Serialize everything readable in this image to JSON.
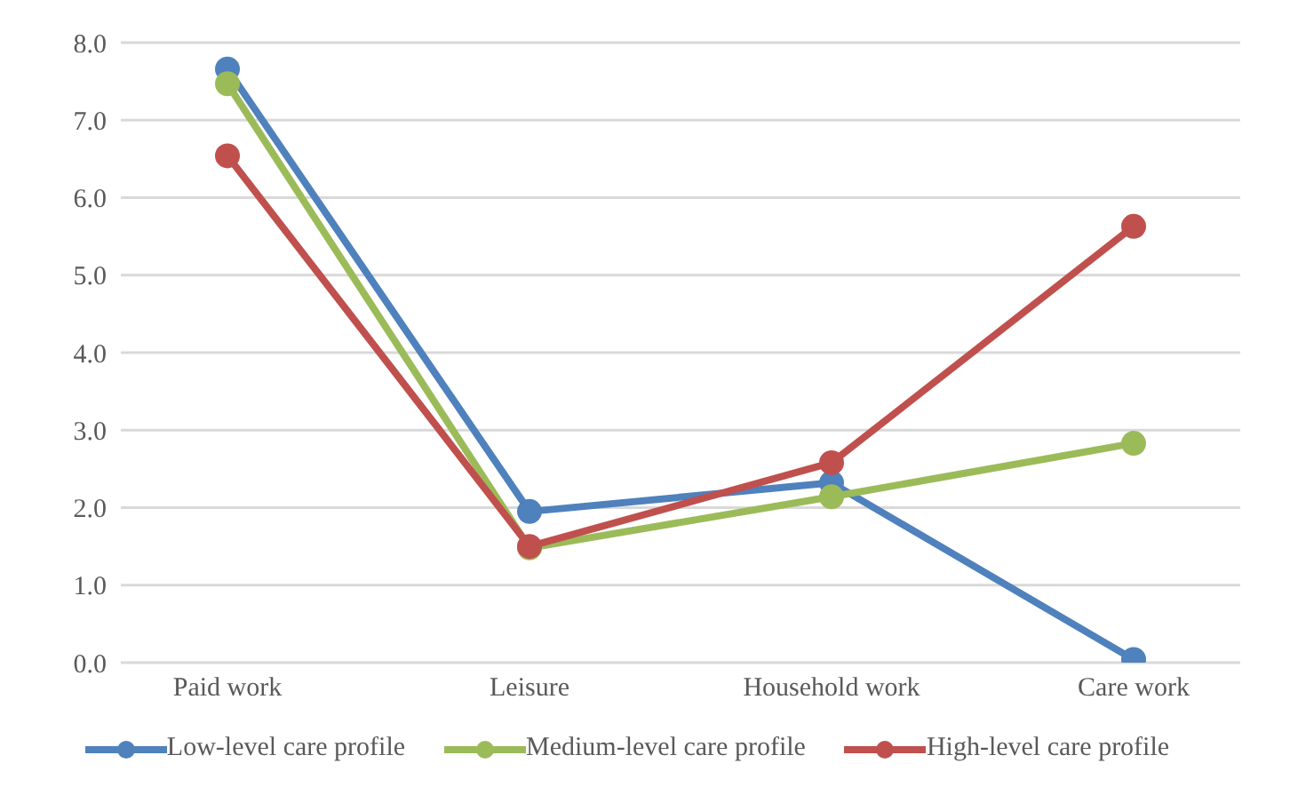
{
  "chart_data": {
    "type": "line",
    "categories": [
      "Paid work",
      "Leisure",
      "Household work",
      "Care work"
    ],
    "series": [
      {
        "name": "Low-level care profile",
        "color": "#4f81bd",
        "values": [
          7.66,
          1.95,
          2.32,
          0.04
        ]
      },
      {
        "name": "Medium-level care profile",
        "color": "#9bbb59",
        "values": [
          7.47,
          1.48,
          2.14,
          2.83
        ]
      },
      {
        "name": "High-level care profile",
        "color": "#c0504d",
        "values": [
          6.54,
          1.5,
          2.58,
          5.63
        ]
      }
    ],
    "ylim": [
      0,
      8
    ],
    "yticks": [
      {
        "value": 0,
        "label": "0.0"
      },
      {
        "value": 1,
        "label": "1.0"
      },
      {
        "value": 2,
        "label": "2.0"
      },
      {
        "value": 3,
        "label": "3.0"
      },
      {
        "value": 4,
        "label": "4.0"
      },
      {
        "value": 5,
        "label": "5.0"
      },
      {
        "value": 6,
        "label": "6.0"
      },
      {
        "value": 7,
        "label": "7.0"
      },
      {
        "value": 8,
        "label": "8.0"
      }
    ],
    "grid": "y",
    "legend": "bottom",
    "marker": "circle",
    "line_style": "solid"
  }
}
